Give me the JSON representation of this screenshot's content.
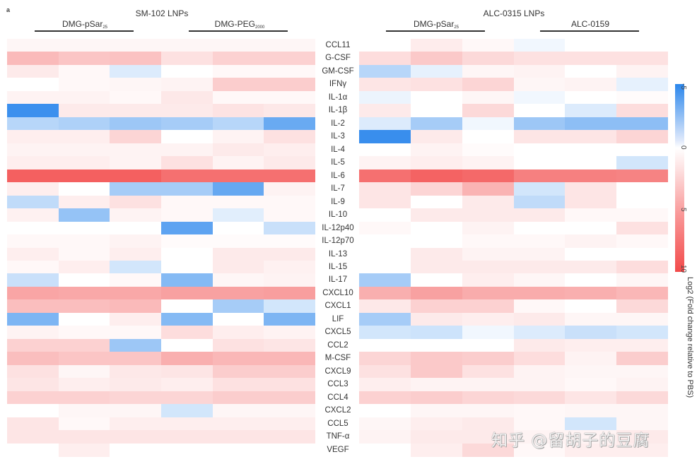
{
  "panel_label": "a",
  "groups": [
    {
      "title": "SM-102 LNPs",
      "subgroups": [
        {
          "name": "DMG-pSar",
          "subscript": "25"
        },
        {
          "name": "DMG-PEG",
          "subscript": "2000"
        }
      ]
    },
    {
      "title": "ALC-0315 LNPs",
      "subgroups": [
        {
          "name": "DMG-pSar",
          "subscript": "25"
        },
        {
          "name": "ALC-0159",
          "subscript": ""
        }
      ]
    }
  ],
  "colorbar": {
    "ticks": [
      "-5",
      "0",
      "5",
      "10"
    ],
    "label": "Log2 (Fold change relative to PBS)",
    "min_color": "#2a86ec",
    "mid_color": "#ffffff",
    "max_color": "#f24a4a"
  },
  "watermark": "知乎 @留胡子的豆腐",
  "chart_data": {
    "type": "heatmap",
    "title": "",
    "colorbar_label": "Log2 (Fold change relative to PBS)",
    "value_range": [
      -5,
      10
    ],
    "column_groups": [
      "SM-102 LNPs / DMG-pSar25",
      "SM-102 LNPs / DMG-PEG2000",
      "ALC-0315 LNPs / DMG-pSar25",
      "ALC-0315 LNPs / ALC-0159"
    ],
    "columns_per_subgroup": 3,
    "rows": [
      "CCL11",
      "G-CSF",
      "GM-CSF",
      "IFNγ",
      "IL-1α",
      "IL-1β",
      "IL-2",
      "IL-3",
      "IL-4",
      "IL-5",
      "IL-6",
      "IL-7",
      "IL-9",
      "IL-10",
      "IL-12p40",
      "IL-12p70",
      "IL-13",
      "IL-15",
      "IL-17",
      "CXCL10",
      "CXCL1",
      "LIF",
      "CXCL5",
      "CCL2",
      "M-CSF",
      "CXCL9",
      "CCL3",
      "CCL4",
      "CXCL2",
      "CCL5",
      "TNF-α",
      "VEGF"
    ],
    "left_block": [
      [
        0.3,
        0.3,
        0.3,
        0.3,
        0.3,
        0.3
      ],
      [
        3.2,
        2.6,
        2.8,
        1.2,
        2.0,
        2.0
      ],
      [
        0.8,
        0.2,
        -0.6,
        0.0,
        0.2,
        0.2
      ],
      [
        0.0,
        0.2,
        0.3,
        0.4,
        2.2,
        2.2
      ],
      [
        0.4,
        0.4,
        0.2,
        0.9,
        0.2,
        0.2
      ],
      [
        -4.5,
        0.8,
        0.8,
        0.8,
        1.1,
        0.9
      ],
      [
        -1.4,
        -1.6,
        -2.0,
        -1.8,
        -1.4,
        -3.3
      ],
      [
        0.6,
        0.6,
        1.8,
        0.0,
        0.4,
        1.2
      ],
      [
        0.4,
        0.4,
        0.4,
        0.4,
        0.8,
        0.6
      ],
      [
        0.6,
        0.6,
        0.4,
        1.2,
        0.4,
        0.8
      ],
      [
        8.6,
        8.6,
        8.6,
        7.6,
        7.6,
        7.6
      ],
      [
        0.6,
        0.0,
        -1.8,
        -1.8,
        -3.4,
        0.4
      ],
      [
        -1.2,
        0.6,
        1.2,
        0.2,
        0.2,
        0.2
      ],
      [
        0.5,
        -2.2,
        0.4,
        0.2,
        -0.5,
        0.2
      ],
      [
        0.0,
        0.0,
        0.0,
        -3.6,
        0.0,
        -1.0
      ],
      [
        0.2,
        0.2,
        0.4,
        0.1,
        0.1,
        0.1
      ],
      [
        0.6,
        0.2,
        0.6,
        0.0,
        0.8,
        0.8
      ],
      [
        0.2,
        0.6,
        -0.8,
        0.0,
        0.8,
        0.5
      ],
      [
        -1.0,
        0.0,
        0.2,
        -2.6,
        0.3,
        0.4
      ],
      [
        4.4,
        4.2,
        4.2,
        4.6,
        4.6,
        4.8
      ],
      [
        3.0,
        3.0,
        3.2,
        0.0,
        -1.8,
        -0.8
      ],
      [
        -2.8,
        0.0,
        0.6,
        -2.6,
        0.0,
        -2.8
      ],
      [
        0.4,
        0.2,
        0.2,
        1.4,
        0.6,
        0.4
      ],
      [
        2.0,
        2.0,
        -2.0,
        0.0,
        1.2,
        1.0
      ],
      [
        3.0,
        2.6,
        2.6,
        3.8,
        3.4,
        3.4
      ],
      [
        1.2,
        0.3,
        0.9,
        1.0,
        2.2,
        2.2
      ],
      [
        1.0,
        0.6,
        0.8,
        0.6,
        1.2,
        1.2
      ],
      [
        2.0,
        2.0,
        1.8,
        1.8,
        2.2,
        2.2
      ],
      [
        0.0,
        0.3,
        0.3,
        -0.8,
        0.3,
        0.3
      ],
      [
        1.0,
        0.2,
        0.6,
        0.6,
        0.6,
        0.6
      ],
      [
        1.0,
        1.0,
        1.0,
        1.0,
        1.0,
        1.0
      ],
      [
        0.0,
        0.6,
        0.0,
        0.0,
        0.0,
        0.0
      ]
    ],
    "right_block": [
      [
        0.0,
        0.7,
        0.2,
        -0.2,
        0.0,
        0.0
      ],
      [
        1.4,
        2.4,
        1.6,
        1.2,
        1.2,
        1.2
      ],
      [
        -1.4,
        -0.4,
        0.3,
        0.4,
        0.0,
        0.4
      ],
      [
        1.0,
        1.2,
        1.8,
        0.3,
        0.4,
        -0.4
      ],
      [
        -0.3,
        0.0,
        0.3,
        -0.2,
        0.0,
        0.1
      ],
      [
        0.8,
        0.0,
        1.6,
        0.0,
        -0.6,
        1.4
      ],
      [
        -0.6,
        -1.8,
        -0.2,
        -2.0,
        -2.4,
        -2.4
      ],
      [
        -4.6,
        0.8,
        0.0,
        1.0,
        1.0,
        1.8
      ],
      [
        0.0,
        0.4,
        0.1,
        0.0,
        0.0,
        0.0
      ],
      [
        0.4,
        0.6,
        0.4,
        0.0,
        0.0,
        -0.8
      ],
      [
        7.6,
        8.4,
        8.0,
        6.6,
        6.6,
        6.4
      ],
      [
        1.0,
        1.8,
        3.6,
        -0.8,
        1.0,
        0.0
      ],
      [
        1.0,
        0.0,
        0.8,
        -1.2,
        1.0,
        0.0
      ],
      [
        0.0,
        0.8,
        0.8,
        0.8,
        0.2,
        0.2
      ],
      [
        0.2,
        0.0,
        0.4,
        0.0,
        0.0,
        1.2
      ],
      [
        0.0,
        0.0,
        0.2,
        0.2,
        0.4,
        0.2
      ],
      [
        0.0,
        0.8,
        0.4,
        0.4,
        0.0,
        0.0
      ],
      [
        0.0,
        0.8,
        0.8,
        0.8,
        0.8,
        1.4
      ],
      [
        -1.8,
        0.0,
        0.6,
        0.3,
        0.0,
        0.3
      ],
      [
        3.8,
        4.6,
        4.0,
        4.0,
        3.8,
        3.4
      ],
      [
        0.9,
        2.0,
        2.0,
        0.2,
        0.0,
        1.6
      ],
      [
        -1.8,
        0.8,
        0.6,
        0.8,
        0.3,
        0.3
      ],
      [
        -0.8,
        -0.9,
        -0.2,
        -0.6,
        -1.0,
        -0.8
      ],
      [
        0.0,
        0.0,
        0.0,
        0.8,
        0.6,
        0.6
      ],
      [
        1.8,
        2.4,
        2.2,
        1.4,
        0.4,
        2.2
      ],
      [
        1.2,
        2.4,
        1.2,
        0.4,
        0.3,
        0.3
      ],
      [
        0.6,
        0.4,
        0.4,
        0.4,
        0.2,
        0.4
      ],
      [
        2.0,
        2.2,
        1.8,
        1.6,
        1.0,
        1.6
      ],
      [
        0.0,
        0.3,
        0.3,
        0.2,
        0.3,
        0.3
      ],
      [
        0.3,
        0.6,
        0.8,
        0.2,
        -0.8,
        0.3
      ],
      [
        0.4,
        0.8,
        0.8,
        0.4,
        0.4,
        0.8
      ],
      [
        0.0,
        0.6,
        1.6,
        0.2,
        0.6,
        0.6
      ]
    ]
  }
}
